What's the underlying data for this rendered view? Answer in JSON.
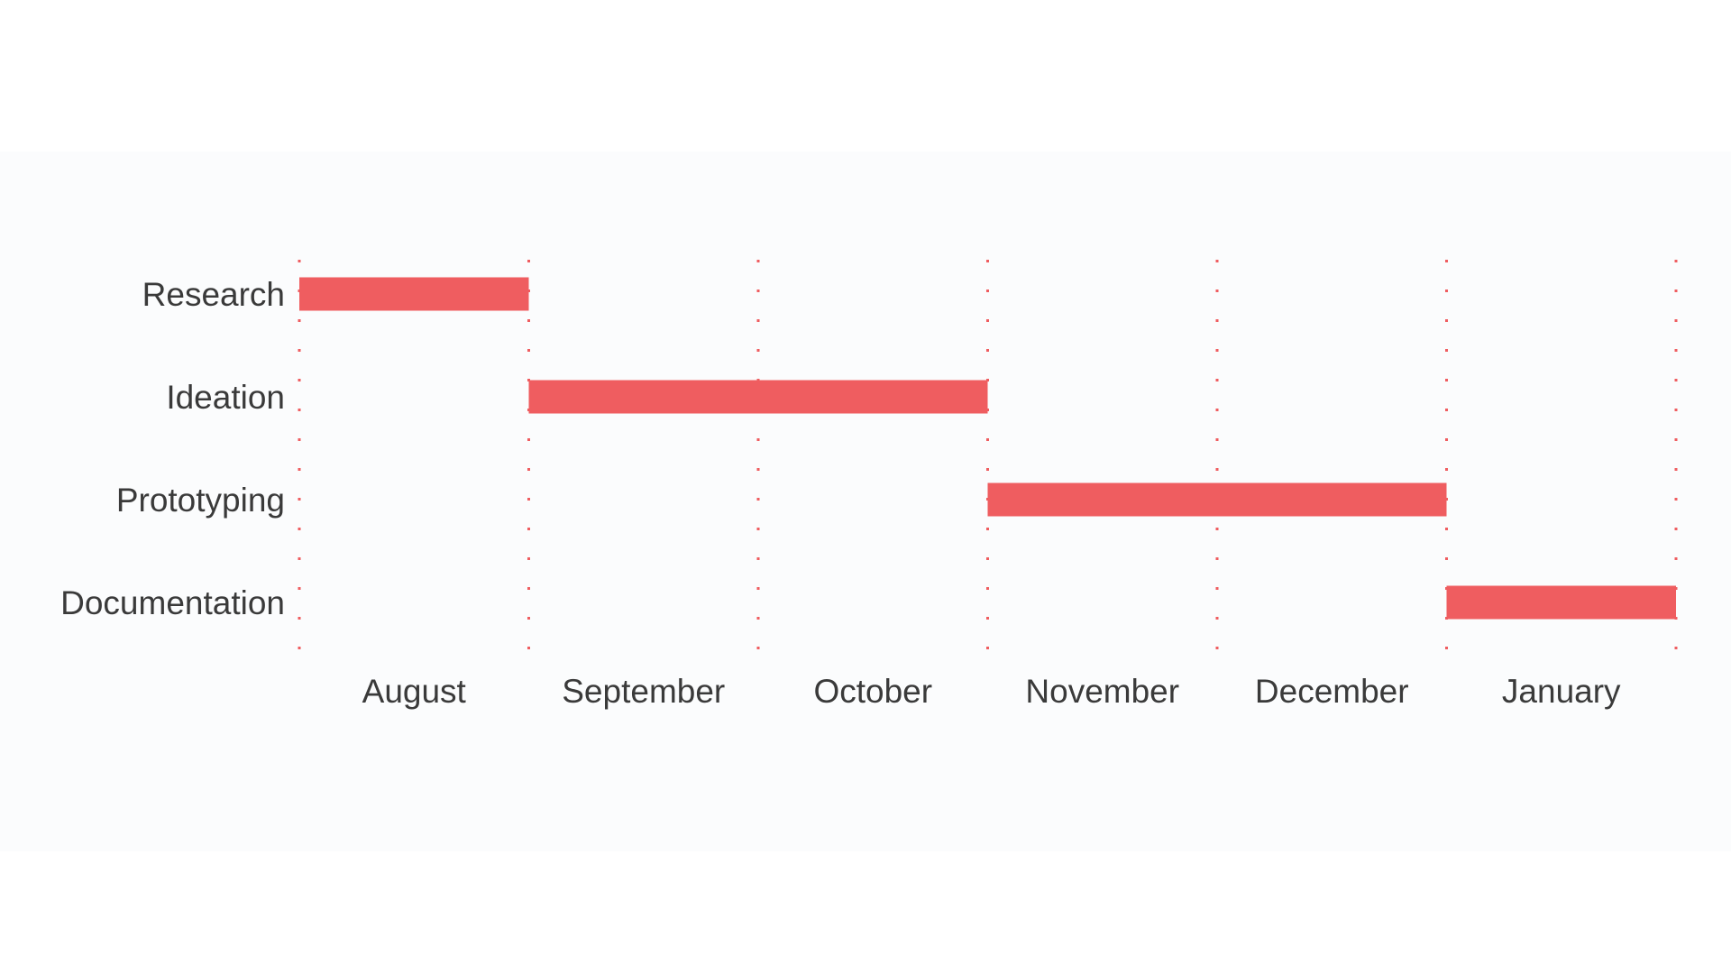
{
  "chart_data": {
    "type": "gantt",
    "title": "",
    "xlabel": "",
    "ylabel": "",
    "grid": "vertical dotted lines at month boundaries",
    "months": [
      "August",
      "September",
      "October",
      "November",
      "December",
      "January"
    ],
    "tasks": [
      {
        "name": "Research",
        "start_month": "August",
        "end_month": "August"
      },
      {
        "name": "Ideation",
        "start_month": "September",
        "end_month": "October"
      },
      {
        "name": "Prototyping",
        "start_month": "November",
        "end_month": "December"
      },
      {
        "name": "Documentation",
        "start_month": "January",
        "end_month": "January"
      }
    ],
    "colors": {
      "bar": "#ef5d60",
      "grid": "#ef5d60",
      "text": "#3a3a3a",
      "background": "#fbfcfd"
    }
  }
}
